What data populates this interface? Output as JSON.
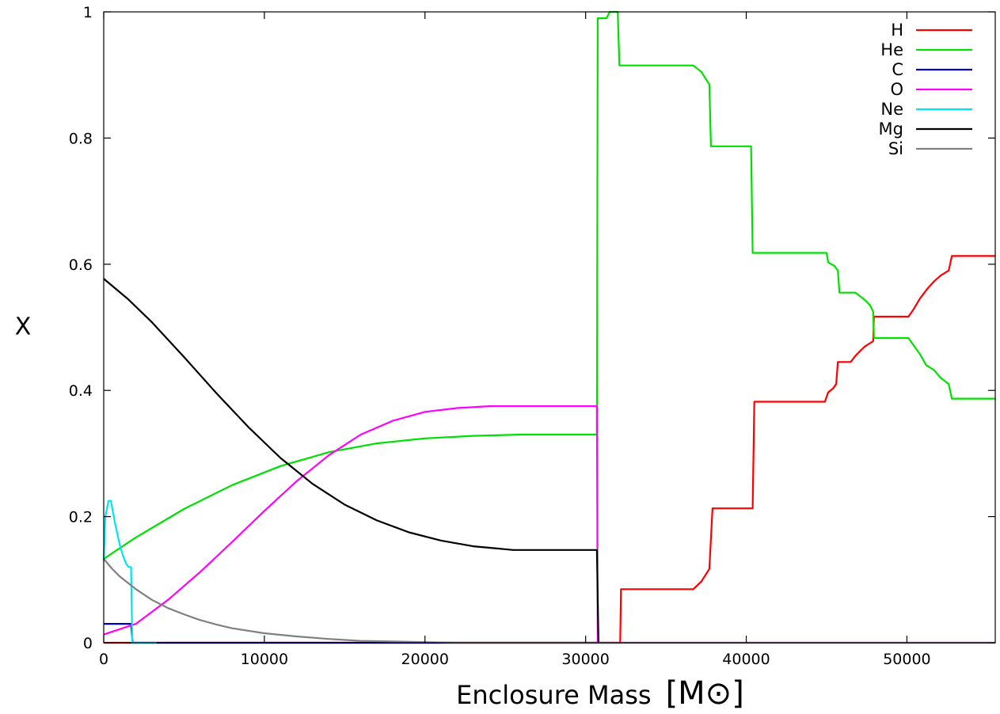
{
  "chart_data": {
    "type": "line",
    "xlabel": "Enclosure Mass",
    "xunit": "[M⊙]",
    "ylabel": "X",
    "xlim": [
      0,
      55500
    ],
    "ylim": [
      0,
      1
    ],
    "xticks": [
      0,
      10000,
      20000,
      30000,
      40000,
      50000
    ],
    "xtick_labels": [
      "0",
      "10000",
      "20000",
      "30000",
      "40000",
      "50000"
    ],
    "yticks": [
      0,
      0.2,
      0.4,
      0.6,
      0.8,
      1
    ],
    "ytick_labels": [
      "0",
      "0.2",
      "0.4",
      "0.6",
      "0.8",
      "1"
    ],
    "grid": false,
    "legend_position": "top-right",
    "series": [
      {
        "name": "H",
        "color": "#ff0000",
        "points": [
          [
            0,
            0
          ],
          [
            31900,
            0
          ],
          [
            32150,
            0
          ],
          [
            32200,
            0.085
          ],
          [
            36700,
            0.085
          ],
          [
            37200,
            0.097
          ],
          [
            37700,
            0.117
          ],
          [
            37900,
            0.213
          ],
          [
            40400,
            0.213
          ],
          [
            40500,
            0.382
          ],
          [
            44900,
            0.382
          ],
          [
            45100,
            0.397
          ],
          [
            45400,
            0.403
          ],
          [
            45600,
            0.41
          ],
          [
            45700,
            0.445
          ],
          [
            46500,
            0.445
          ],
          [
            46800,
            0.455
          ],
          [
            47100,
            0.463
          ],
          [
            47400,
            0.47
          ],
          [
            47900,
            0.478
          ],
          [
            47950,
            0.517
          ],
          [
            50100,
            0.517
          ],
          [
            50400,
            0.528
          ],
          [
            50800,
            0.545
          ],
          [
            51300,
            0.562
          ],
          [
            51700,
            0.573
          ],
          [
            52100,
            0.582
          ],
          [
            52600,
            0.59
          ],
          [
            52800,
            0.613
          ],
          [
            55500,
            0.613
          ]
        ]
      },
      {
        "name": "He",
        "color": "#00e000",
        "points": [
          [
            0,
            0.133
          ],
          [
            2000,
            0.167
          ],
          [
            5000,
            0.212
          ],
          [
            8000,
            0.25
          ],
          [
            11000,
            0.28
          ],
          [
            14000,
            0.302
          ],
          [
            17000,
            0.316
          ],
          [
            20000,
            0.324
          ],
          [
            23000,
            0.328
          ],
          [
            26000,
            0.33
          ],
          [
            30700,
            0.33
          ],
          [
            30750,
            0.99
          ],
          [
            31000,
            0.99
          ],
          [
            31300,
            0.99
          ],
          [
            31500,
            1
          ],
          [
            32000,
            1
          ],
          [
            32100,
            0.915
          ],
          [
            36700,
            0.915
          ],
          [
            37200,
            0.905
          ],
          [
            37700,
            0.885
          ],
          [
            37800,
            0.787
          ],
          [
            40300,
            0.787
          ],
          [
            40400,
            0.618
          ],
          [
            45000,
            0.618
          ],
          [
            45100,
            0.603
          ],
          [
            45500,
            0.597
          ],
          [
            45700,
            0.59
          ],
          [
            45800,
            0.555
          ],
          [
            46800,
            0.555
          ],
          [
            47400,
            0.543
          ],
          [
            47700,
            0.535
          ],
          [
            47900,
            0.525
          ],
          [
            47950,
            0.483
          ],
          [
            50100,
            0.483
          ],
          [
            50400,
            0.472
          ],
          [
            50800,
            0.458
          ],
          [
            51200,
            0.44
          ],
          [
            51700,
            0.432
          ],
          [
            52100,
            0.42
          ],
          [
            52600,
            0.41
          ],
          [
            52800,
            0.387
          ],
          [
            55500,
            0.387
          ]
        ]
      },
      {
        "name": "C",
        "color": "#0000c8",
        "points": [
          [
            0,
            0.03
          ],
          [
            1700,
            0.03
          ],
          [
            1800,
            0
          ],
          [
            30700,
            0
          ]
        ]
      },
      {
        "name": "O",
        "color": "#ff00ff",
        "points": [
          [
            0,
            0.013
          ],
          [
            2000,
            0.03
          ],
          [
            4000,
            0.068
          ],
          [
            6000,
            0.112
          ],
          [
            8000,
            0.16
          ],
          [
            10000,
            0.209
          ],
          [
            12000,
            0.256
          ],
          [
            14000,
            0.297
          ],
          [
            16000,
            0.33
          ],
          [
            18000,
            0.352
          ],
          [
            20000,
            0.366
          ],
          [
            22000,
            0.372
          ],
          [
            24000,
            0.375
          ],
          [
            25500,
            0.375
          ],
          [
            30700,
            0.375
          ],
          [
            30750,
            0
          ],
          [
            55500,
            0
          ]
        ]
      },
      {
        "name": "Ne",
        "color": "#00e5ee",
        "points": [
          [
            0,
            0.13
          ],
          [
            100,
            0.2
          ],
          [
            300,
            0.225
          ],
          [
            450,
            0.225
          ],
          [
            700,
            0.19
          ],
          [
            1000,
            0.155
          ],
          [
            1200,
            0.138
          ],
          [
            1400,
            0.125
          ],
          [
            1550,
            0.12
          ],
          [
            1700,
            0.12
          ],
          [
            1780,
            0
          ],
          [
            3300,
            0
          ]
        ]
      },
      {
        "name": "Mg",
        "color": "#000000",
        "points": [
          [
            0,
            0.577
          ],
          [
            1500,
            0.545
          ],
          [
            3000,
            0.508
          ],
          [
            5000,
            0.453
          ],
          [
            7000,
            0.396
          ],
          [
            9000,
            0.342
          ],
          [
            11000,
            0.293
          ],
          [
            13000,
            0.252
          ],
          [
            15000,
            0.219
          ],
          [
            17000,
            0.194
          ],
          [
            19000,
            0.175
          ],
          [
            21000,
            0.162
          ],
          [
            23000,
            0.153
          ],
          [
            25500,
            0.147
          ],
          [
            30700,
            0.147
          ],
          [
            30800,
            0
          ]
        ]
      },
      {
        "name": "Si",
        "color": "#808080",
        "points": [
          [
            0,
            0.133
          ],
          [
            500,
            0.118
          ],
          [
            1000,
            0.105
          ],
          [
            2000,
            0.085
          ],
          [
            3000,
            0.068
          ],
          [
            4000,
            0.055
          ],
          [
            5000,
            0.045
          ],
          [
            6000,
            0.036
          ],
          [
            7000,
            0.029
          ],
          [
            8000,
            0.023
          ],
          [
            10000,
            0.015
          ],
          [
            12000,
            0.01
          ],
          [
            14000,
            0.006
          ],
          [
            16000,
            0.003
          ],
          [
            18000,
            0.002
          ],
          [
            20000,
            0.001
          ],
          [
            22000,
            0
          ],
          [
            55500,
            0
          ]
        ]
      }
    ]
  }
}
